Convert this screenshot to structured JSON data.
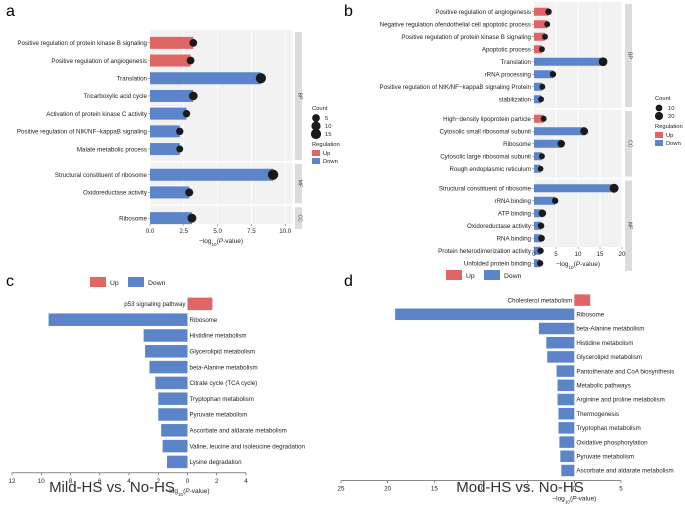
{
  "colors": {
    "up": "#e06666",
    "down": "#5b85c8",
    "strip": "#dcdcdc",
    "dot": "#1a1a1a",
    "panel_bg": "#f2f2f2"
  },
  "comparisons": {
    "left": "Mild-HS vs. No-HS",
    "right": "Mod-HS vs. No-HS"
  },
  "xlabel_prefix": "−log",
  "xlabel_sub": "10",
  "xlabel_suffix_open": "(",
  "xlabel_p": "P",
  "xlabel_suffix_close": "-value)",
  "chart_data": [
    {
      "id": "a",
      "type": "bar",
      "letter": "a",
      "xlim": [
        0,
        10.5
      ],
      "xticks": [
        0,
        2.5,
        5,
        7.5,
        10
      ],
      "xtick_labels": [
        "0.0",
        "2.5",
        "5.0",
        "7.5",
        "10.0"
      ],
      "groups": [
        {
          "name": "BP",
          "items": [
            {
              "term": "Positive regulation of protein kinase B signaling",
              "value": 3.2,
              "reg": "Up",
              "count": 5
            },
            {
              "term": "Positive regulation of angiogenesis",
              "value": 3.0,
              "reg": "Up",
              "count": 5
            },
            {
              "term": "Translation",
              "value": 8.2,
              "reg": "Down",
              "count": 15
            },
            {
              "term": "Tricarboxylic acid cycle",
              "value": 3.2,
              "reg": "Down",
              "count": 8
            },
            {
              "term": "Activation of protein kinase C activity",
              "value": 2.7,
              "reg": "Down",
              "count": 4
            },
            {
              "term": "Positive regulation of NIK/NF−kappaB signaling",
              "value": 2.2,
              "reg": "Down",
              "count": 4
            },
            {
              "term": "Malate metabolic process",
              "value": 2.2,
              "reg": "Down",
              "count": 3
            }
          ]
        },
        {
          "name": "MF",
          "items": [
            {
              "term": "Structural constituent of ribosome",
              "value": 9.1,
              "reg": "Down",
              "count": 16
            },
            {
              "term": "Oxidoreductase activity",
              "value": 2.9,
              "reg": "Down",
              "count": 6
            }
          ]
        },
        {
          "name": "CC",
          "items": [
            {
              "term": "Ribosome",
              "value": 3.1,
              "reg": "Down",
              "count": 9
            }
          ]
        }
      ],
      "legend": {
        "count_title": "Count",
        "count_values": [
          5,
          10,
          15
        ],
        "reg_title": "Regulation",
        "reg_labels": [
          "Up",
          "Down"
        ]
      }
    },
    {
      "id": "b",
      "type": "bar",
      "letter": "b",
      "xlim": [
        0,
        20
      ],
      "xticks": [
        0,
        5,
        10,
        15,
        20
      ],
      "xtick_labels": [
        "0",
        "5",
        "10",
        "15",
        "20"
      ],
      "groups": [
        {
          "name": "BP",
          "items": [
            {
              "term": "Positive regulation of angiogenesis",
              "value": 3.3,
              "reg": "Up",
              "count": 8
            },
            {
              "term": "Negative regulation ofendothelial cell apoptotic process",
              "value": 3.0,
              "reg": "Up",
              "count": 5
            },
            {
              "term": "Positive regulation of protein kinase B signaling",
              "value": 2.5,
              "reg": "Up",
              "count": 5
            },
            {
              "term": "Apoptotic process",
              "value": 1.8,
              "reg": "Up",
              "count": 5
            },
            {
              "term": "Translation",
              "value": 15.7,
              "reg": "Down",
              "count": 25
            },
            {
              "term": "rRNA processing",
              "value": 4.3,
              "reg": "Down",
              "count": 8
            },
            {
              "term": "Positive regulation of NIK/NF−kappaB signaling Protein",
              "value": 1.9,
              "reg": "Down",
              "count": 5
            },
            {
              "term": "stabilization",
              "value": 1.6,
              "reg": "Down",
              "count": 5
            }
          ]
        },
        {
          "name": "CC",
          "items": [
            {
              "term": "High−density lipoprotein particle",
              "value": 2.2,
              "reg": "Up",
              "count": 5
            },
            {
              "term": "Cytosolic small ribosomal subunit",
              "value": 11.4,
              "reg": "Down",
              "count": 18
            },
            {
              "term": "Ribosome",
              "value": 6.2,
              "reg": "Down",
              "count": 14
            },
            {
              "term": "Cytosolic large ribosomal subunit",
              "value": 1.8,
              "reg": "Down",
              "count": 5
            },
            {
              "term": "Rough endoplasmic reticulum",
              "value": 1.5,
              "reg": "Down",
              "count": 4
            }
          ]
        },
        {
          "name": "MF",
          "items": [
            {
              "term": "Structural constituent of ribosome",
              "value": 18.2,
              "reg": "Down",
              "count": 28
            },
            {
              "term": "rRNA binding",
              "value": 4.8,
              "reg": "Down",
              "count": 8
            },
            {
              "term": "ATP binding",
              "value": 1.9,
              "reg": "Down",
              "count": 15
            },
            {
              "term": "Oxidoreductase activity",
              "value": 1.6,
              "reg": "Down",
              "count": 8
            },
            {
              "term": "RNA binding",
              "value": 1.7,
              "reg": "Down",
              "count": 10
            },
            {
              "term": "Protein heterodimerization activity",
              "value": 1.5,
              "reg": "Down",
              "count": 7
            },
            {
              "term": "Unfolded protein binding",
              "value": 1.4,
              "reg": "Down",
              "count": 7
            }
          ]
        }
      ],
      "legend": {
        "count_title": "Count",
        "count_values": [
          10,
          20
        ],
        "reg_title": "Regulation",
        "reg_labels": [
          "Up",
          "Down"
        ]
      }
    },
    {
      "id": "c",
      "type": "bar",
      "letter": "c",
      "xlim": [
        -12,
        4
      ],
      "xticks": [
        -12,
        -10,
        -8,
        -6,
        -4,
        -2,
        0,
        2,
        4
      ],
      "xtick_labels": [
        "12",
        "10",
        "8",
        "6",
        "4",
        "2",
        "0",
        "2",
        "4"
      ],
      "legend": {
        "labels": [
          "Up",
          "Down"
        ]
      },
      "items": [
        {
          "term": "p53 signaling pathway",
          "value": 1.7,
          "reg": "Up"
        },
        {
          "term": "Ribosome",
          "value": -9.5,
          "reg": "Down"
        },
        {
          "term": "Histidine metabolism",
          "value": -3.0,
          "reg": "Down"
        },
        {
          "term": "Glycerolipid metabolism",
          "value": -2.9,
          "reg": "Down"
        },
        {
          "term": "beta-Alanine metabolism",
          "value": -2.6,
          "reg": "Down"
        },
        {
          "term": "Citrate cycle (TCA cycle)",
          "value": -2.2,
          "reg": "Down"
        },
        {
          "term": "Tryptophan metabolism",
          "value": -2.0,
          "reg": "Down"
        },
        {
          "term": "Pyruvate metabolism",
          "value": -2.0,
          "reg": "Down"
        },
        {
          "term": "Ascorbate and aldarate metabolism",
          "value": -1.8,
          "reg": "Down"
        },
        {
          "term": "Valine, leucine and isoleucine degradation",
          "value": -1.7,
          "reg": "Down"
        },
        {
          "term": "Lysine degradation",
          "value": -1.4,
          "reg": "Down"
        }
      ]
    },
    {
      "id": "d",
      "type": "bar",
      "letter": "d",
      "xlim": [
        -25,
        5
      ],
      "xticks": [
        -25,
        -20,
        -15,
        -10,
        -5,
        0,
        5
      ],
      "xtick_labels": [
        "25",
        "20",
        "15",
        "10",
        "5",
        "0",
        "5"
      ],
      "legend": {
        "labels": [
          "Up",
          "Down"
        ]
      },
      "items": [
        {
          "term": "Cholesterol metabolism",
          "value": 1.7,
          "reg": "Up"
        },
        {
          "term": "Ribosome",
          "value": -19.2,
          "reg": "Down"
        },
        {
          "term": "beta-Alanine metabolism",
          "value": -3.8,
          "reg": "Down"
        },
        {
          "term": "Histidine metabolism",
          "value": -3.0,
          "reg": "Down"
        },
        {
          "term": "Glycerolipid metabolism",
          "value": -2.9,
          "reg": "Down"
        },
        {
          "term": "Pantothenate and CoA biosynthesis",
          "value": -1.9,
          "reg": "Down"
        },
        {
          "term": "Metabolic pathways",
          "value": -1.8,
          "reg": "Down"
        },
        {
          "term": "Arginine and proline metabolism",
          "value": -1.8,
          "reg": "Down"
        },
        {
          "term": "Thermogenesis",
          "value": -1.7,
          "reg": "Down"
        },
        {
          "term": "Tryptophan metabolism",
          "value": -1.7,
          "reg": "Down"
        },
        {
          "term": "Oxidative phosphorylation",
          "value": -1.6,
          "reg": "Down"
        },
        {
          "term": "Pyruvate metabolism",
          "value": -1.5,
          "reg": "Down"
        },
        {
          "term": "Ascorbate and aldarate metabolism",
          "value": -1.4,
          "reg": "Down"
        }
      ]
    }
  ]
}
